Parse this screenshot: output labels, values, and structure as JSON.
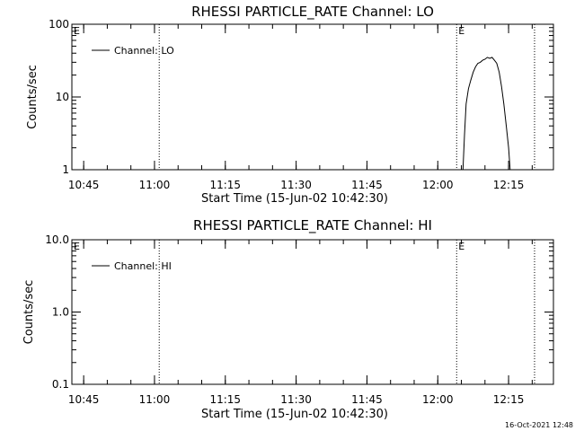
{
  "chart_data": [
    {
      "type": "line",
      "title": "RHESSI PARTICLE_RATE Channel: LO",
      "xlabel": "Start Time (15-Jun-02 10:42:30)",
      "ylabel": "Counts/sec",
      "y_scale": "log",
      "ylim": [
        1,
        100
      ],
      "y_ticks": [
        1,
        10,
        100
      ],
      "y_tick_labels": [
        "1",
        "10",
        "100"
      ],
      "xlim": [
        "10:42:30",
        "12:24:30"
      ],
      "x_ticks": [
        "10:45",
        "11:00",
        "11:15",
        "11:30",
        "11:45",
        "12:00",
        "12:15"
      ],
      "event_lines": [
        {
          "time": "11:01:00",
          "label": ""
        },
        {
          "time": "12:04:00",
          "label": "E"
        },
        {
          "time": "12:20:30",
          "label": ""
        }
      ],
      "left_marker": "E",
      "legend": {
        "position": "top-left",
        "entries": [
          "Channel: LO"
        ]
      },
      "series": [
        {
          "name": "Channel: LO",
          "points": [
            [
              "12:05:20",
              1.0
            ],
            [
              "12:05:40",
              3.0
            ],
            [
              "12:06:00",
              8.0
            ],
            [
              "12:06:30",
              13.0
            ],
            [
              "12:07:00",
              17.0
            ],
            [
              "12:07:30",
              22.0
            ],
            [
              "12:08:00",
              26.0
            ],
            [
              "12:08:30",
              29.0
            ],
            [
              "12:09:00",
              30.0
            ],
            [
              "12:09:30",
              32.0
            ],
            [
              "12:10:00",
              33.0
            ],
            [
              "12:10:30",
              35.0
            ],
            [
              "12:11:00",
              34.0
            ],
            [
              "12:11:30",
              35.0
            ],
            [
              "12:12:00",
              32.0
            ],
            [
              "12:12:30",
              29.0
            ],
            [
              "12:13:00",
              22.0
            ],
            [
              "12:13:30",
              14.0
            ],
            [
              "12:14:00",
              8.0
            ],
            [
              "12:14:30",
              4.0
            ],
            [
              "12:15:00",
              2.0
            ],
            [
              "12:15:20",
              1.0
            ]
          ]
        }
      ]
    },
    {
      "type": "line",
      "title": "RHESSI PARTICLE_RATE Channel: HI",
      "xlabel": "Start Time (15-Jun-02 10:42:30)",
      "ylabel": "Counts/sec",
      "y_scale": "log",
      "ylim": [
        0.1,
        10
      ],
      "y_ticks": [
        0.1,
        1,
        10
      ],
      "y_tick_labels": [
        "0.1",
        "1.0",
        "10.0"
      ],
      "xlim": [
        "10:42:30",
        "12:24:30"
      ],
      "x_ticks": [
        "10:45",
        "11:00",
        "11:15",
        "11:30",
        "11:45",
        "12:00",
        "12:15"
      ],
      "event_lines": [
        {
          "time": "11:01:00",
          "label": ""
        },
        {
          "time": "12:04:00",
          "label": "E"
        },
        {
          "time": "12:20:30",
          "label": ""
        }
      ],
      "left_marker": "E",
      "legend": {
        "position": "top-left",
        "entries": [
          "Channel: HI"
        ]
      },
      "series": [
        {
          "name": "Channel: HI",
          "points": []
        }
      ]
    }
  ],
  "footer": {
    "timestamp": "16-Oct-2021 12:48"
  }
}
